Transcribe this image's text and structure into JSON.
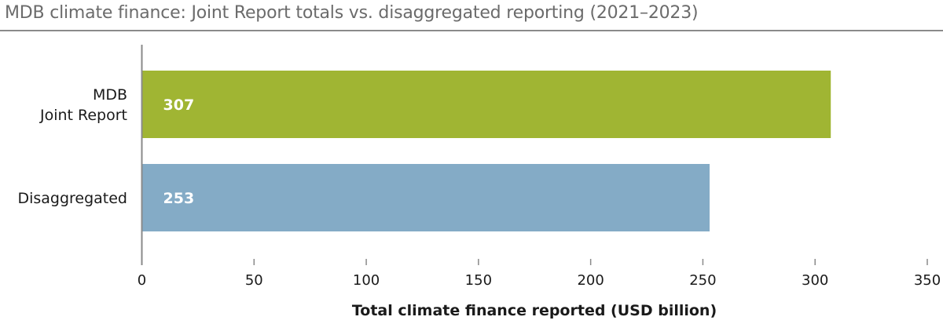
{
  "chart_data": {
    "type": "bar",
    "orientation": "horizontal",
    "title": "MDB climate finance: Joint Report totals vs. disaggregated reporting (2021–2023)",
    "xlabel": "Total climate finance reported (USD billion)",
    "ylabel": "",
    "xlim": [
      0,
      350
    ],
    "xticks": [
      "0",
      "50",
      "100",
      "150",
      "200",
      "250",
      "300",
      "350"
    ],
    "grid": false,
    "categories": [
      [
        "MDB",
        "Joint Report"
      ],
      [
        "Disaggregated"
      ]
    ],
    "values": [
      307,
      253
    ],
    "data_labels": [
      "307",
      "253"
    ],
    "colors": [
      "#a0b533",
      "#84abc6"
    ]
  }
}
